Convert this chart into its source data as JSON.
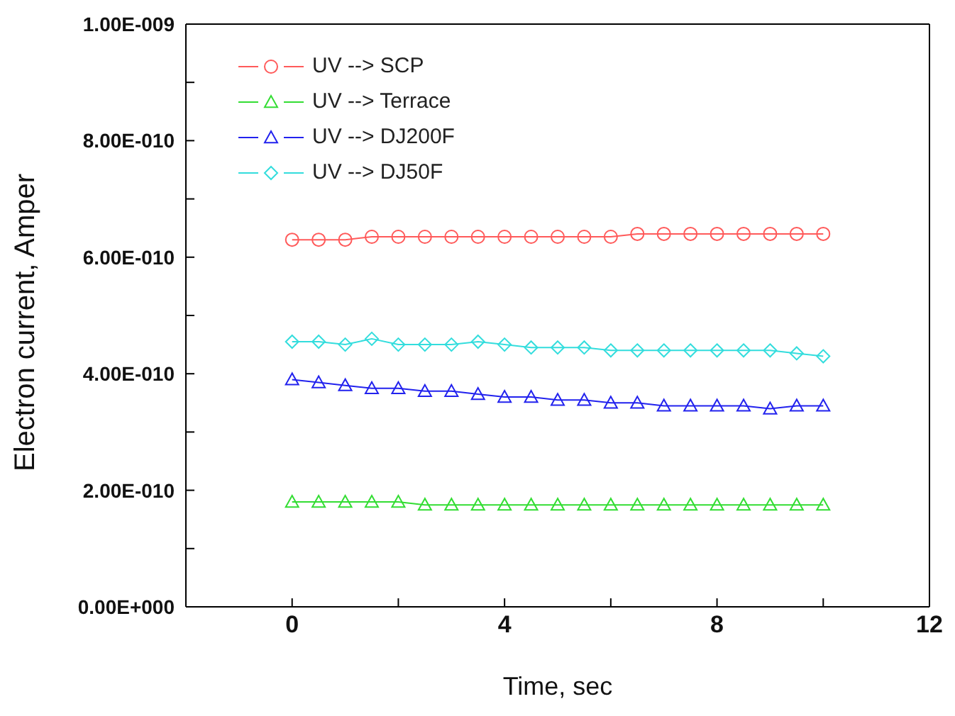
{
  "chart_data": {
    "type": "line",
    "xlabel": "Time, sec",
    "ylabel": "Electron current, Amper",
    "x": [
      0,
      0.5,
      1,
      1.5,
      2,
      2.5,
      3,
      3.5,
      4,
      4.5,
      5,
      5.5,
      6,
      6.5,
      7,
      7.5,
      8,
      8.5,
      9,
      9.5,
      10
    ],
    "series": [
      {
        "name": "UV --> SCP",
        "color": "#ff5a5a",
        "marker": "circle",
        "values": [
          6.3e-10,
          6.3e-10,
          6.3e-10,
          6.35e-10,
          6.35e-10,
          6.35e-10,
          6.35e-10,
          6.35e-10,
          6.35e-10,
          6.35e-10,
          6.35e-10,
          6.35e-10,
          6.35e-10,
          6.4e-10,
          6.4e-10,
          6.4e-10,
          6.4e-10,
          6.4e-10,
          6.4e-10,
          6.4e-10,
          6.4e-10
        ]
      },
      {
        "name": "UV --> Terrace",
        "color": "#33dd33",
        "marker": "triangle",
        "values": [
          1.8e-10,
          1.8e-10,
          1.8e-10,
          1.8e-10,
          1.8e-10,
          1.75e-10,
          1.75e-10,
          1.75e-10,
          1.75e-10,
          1.75e-10,
          1.75e-10,
          1.75e-10,
          1.75e-10,
          1.75e-10,
          1.75e-10,
          1.75e-10,
          1.75e-10,
          1.75e-10,
          1.75e-10,
          1.75e-10,
          1.75e-10
        ]
      },
      {
        "name": "UV --> DJ200F",
        "color": "#2222ee",
        "marker": "triangle",
        "values": [
          3.9e-10,
          3.85e-10,
          3.8e-10,
          3.75e-10,
          3.75e-10,
          3.7e-10,
          3.7e-10,
          3.65e-10,
          3.6e-10,
          3.6e-10,
          3.55e-10,
          3.55e-10,
          3.5e-10,
          3.5e-10,
          3.45e-10,
          3.45e-10,
          3.45e-10,
          3.45e-10,
          3.4e-10,
          3.45e-10,
          3.45e-10
        ]
      },
      {
        "name": "UV --> DJ50F",
        "color": "#33dddd",
        "marker": "diamond",
        "values": [
          4.55e-10,
          4.55e-10,
          4.5e-10,
          4.6e-10,
          4.5e-10,
          4.5e-10,
          4.5e-10,
          4.55e-10,
          4.5e-10,
          4.45e-10,
          4.45e-10,
          4.45e-10,
          4.4e-10,
          4.4e-10,
          4.4e-10,
          4.4e-10,
          4.4e-10,
          4.4e-10,
          4.4e-10,
          4.35e-10,
          4.3e-10
        ]
      }
    ],
    "xlim": [
      -2,
      12
    ],
    "xticks": [
      0,
      {
        "value": 2,
        "label": null
      },
      4,
      {
        "value": 6,
        "label": null
      },
      8,
      {
        "value": 10,
        "label": null
      },
      12
    ],
    "ylim": [
      0,
      1e-09
    ],
    "yticks": [
      {
        "value": 0,
        "label": "0.00E+000"
      },
      {
        "value": 1e-10,
        "label": null
      },
      {
        "value": 2e-10,
        "label": "2.00E-010"
      },
      {
        "value": 3e-10,
        "label": null
      },
      {
        "value": 4e-10,
        "label": "4.00E-010"
      },
      {
        "value": 5e-10,
        "label": null
      },
      {
        "value": 6e-10,
        "label": "6.00E-010"
      },
      {
        "value": 7e-10,
        "label": null
      },
      {
        "value": 8e-10,
        "label": "8.00E-010"
      },
      {
        "value": 9e-10,
        "label": null
      },
      {
        "value": 1e-09,
        "label": "1.00E-009"
      }
    ],
    "grid": false,
    "legend": "top left"
  }
}
